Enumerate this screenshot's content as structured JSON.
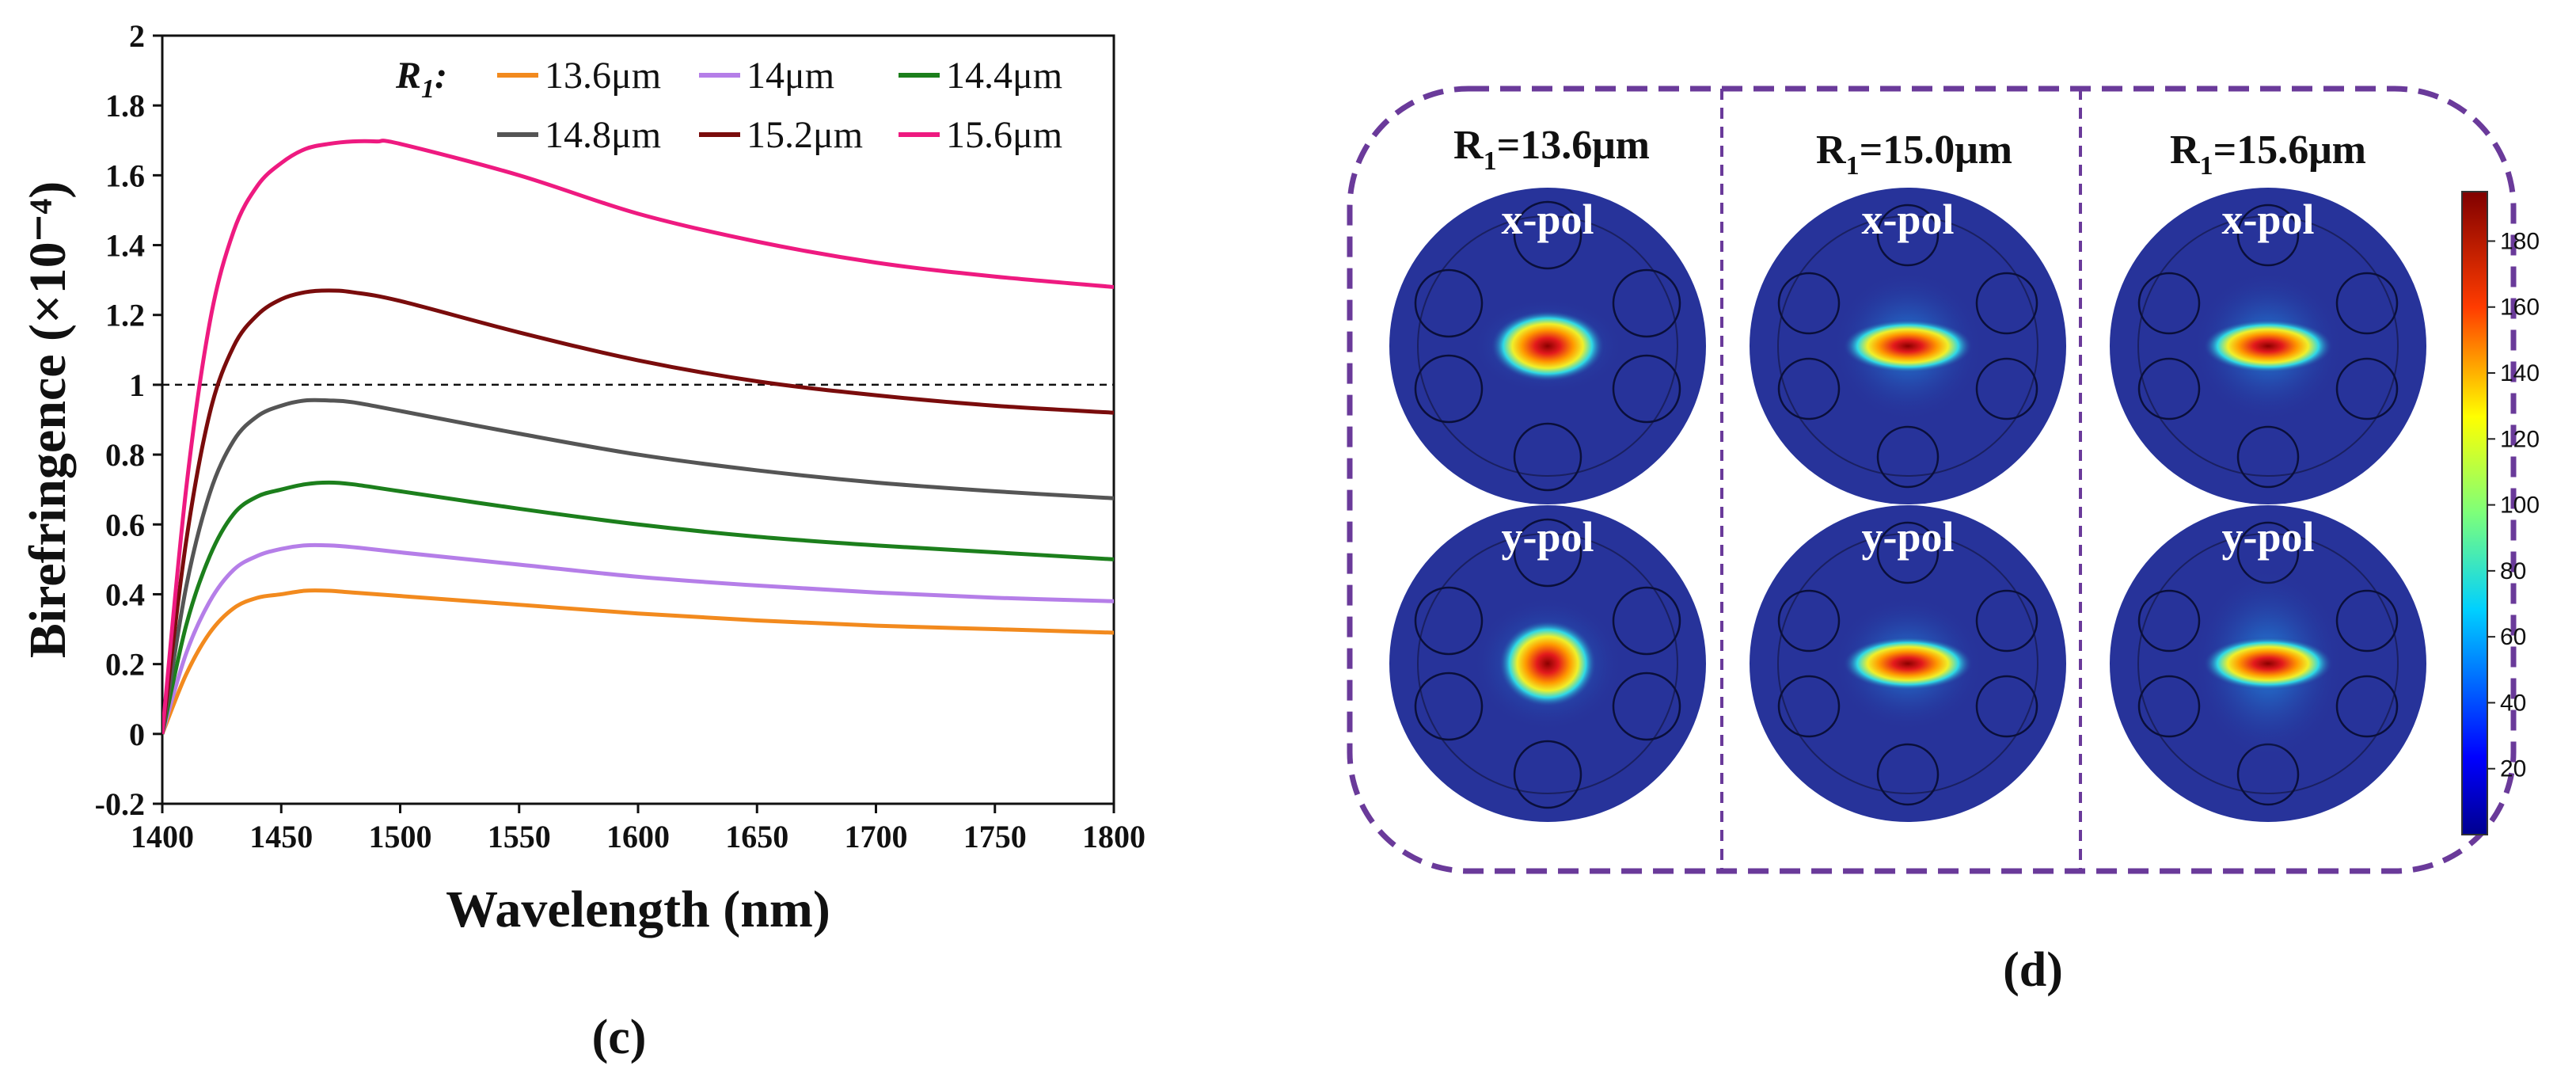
{
  "chart_data": {
    "type": "line",
    "panel_label": "(c)",
    "xlabel": "Wavelength (nm)",
    "ylabel": "Birefringence (×10⁻⁴)",
    "xlim": [
      1400,
      1800
    ],
    "ylim": [
      -0.2,
      2
    ],
    "xticks": [
      1400,
      1450,
      1500,
      1550,
      1600,
      1650,
      1700,
      1750,
      1800
    ],
    "yticks": [
      -0.2,
      0,
      0.2,
      0.4,
      0.6,
      0.8,
      1,
      1.2,
      1.4,
      1.6,
      1.8,
      2
    ],
    "reference_line_y": 1,
    "legend_title": "R",
    "legend_title_sub": "1",
    "legend_title_suffix": ":",
    "series": [
      {
        "name": "13.6μm",
        "color": "#f28a1e",
        "x": [
          1400,
          1410,
          1420,
          1430,
          1440,
          1450,
          1460,
          1470,
          1480,
          1500,
          1550,
          1600,
          1650,
          1700,
          1750,
          1800
        ],
        "y": [
          0.0,
          0.17,
          0.29,
          0.36,
          0.39,
          0.4,
          0.41,
          0.41,
          0.405,
          0.395,
          0.37,
          0.345,
          0.325,
          0.31,
          0.3,
          0.29
        ]
      },
      {
        "name": "14μm",
        "color": "#b57ee8",
        "x": [
          1400,
          1410,
          1420,
          1430,
          1440,
          1450,
          1460,
          1470,
          1480,
          1500,
          1550,
          1600,
          1650,
          1700,
          1750,
          1800
        ],
        "y": [
          0.0,
          0.23,
          0.38,
          0.47,
          0.51,
          0.53,
          0.54,
          0.54,
          0.535,
          0.52,
          0.485,
          0.45,
          0.425,
          0.405,
          0.39,
          0.38
        ]
      },
      {
        "name": "14.4μm",
        "color": "#1c7f1c",
        "x": [
          1400,
          1410,
          1420,
          1430,
          1440,
          1450,
          1460,
          1470,
          1480,
          1500,
          1550,
          1600,
          1650,
          1700,
          1750,
          1800
        ],
        "y": [
          0.0,
          0.31,
          0.51,
          0.63,
          0.68,
          0.7,
          0.715,
          0.72,
          0.715,
          0.695,
          0.645,
          0.6,
          0.565,
          0.54,
          0.52,
          0.5
        ]
      },
      {
        "name": "14.8μm",
        "color": "#555555",
        "x": [
          1400,
          1410,
          1420,
          1430,
          1440,
          1450,
          1460,
          1470,
          1480,
          1500,
          1550,
          1600,
          1650,
          1700,
          1750,
          1800
        ],
        "y": [
          0.0,
          0.42,
          0.69,
          0.84,
          0.91,
          0.94,
          0.955,
          0.955,
          0.95,
          0.925,
          0.86,
          0.8,
          0.755,
          0.72,
          0.695,
          0.675
        ]
      },
      {
        "name": "15.2μm",
        "color": "#7a0c0c",
        "x": [
          1400,
          1410,
          1420,
          1430,
          1440,
          1450,
          1460,
          1470,
          1480,
          1500,
          1550,
          1600,
          1650,
          1700,
          1750,
          1800
        ],
        "y": [
          0.0,
          0.55,
          0.92,
          1.11,
          1.2,
          1.245,
          1.265,
          1.27,
          1.265,
          1.24,
          1.15,
          1.07,
          1.01,
          0.97,
          0.94,
          0.92
        ]
      },
      {
        "name": "15.6μm",
        "color": "#ee1a80",
        "x": [
          1400,
          1410,
          1420,
          1430,
          1440,
          1450,
          1460,
          1470,
          1480,
          1490,
          1500,
          1550,
          1600,
          1650,
          1700,
          1750,
          1800
        ],
        "y": [
          0.0,
          0.7,
          1.18,
          1.44,
          1.57,
          1.635,
          1.675,
          1.69,
          1.697,
          1.697,
          1.69,
          1.6,
          1.49,
          1.41,
          1.35,
          1.31,
          1.28
        ]
      }
    ]
  },
  "panel_d": {
    "label": "(d)",
    "columns": [
      {
        "prefix": "R",
        "sub": "1",
        "suffix": "=13.6μm"
      },
      {
        "prefix": "R",
        "sub": "1",
        "suffix": "=15.0μm"
      },
      {
        "prefix": "R",
        "sub": "1",
        "suffix": "=15.6μm"
      }
    ],
    "row_labels": [
      "x-pol",
      "y-pol"
    ],
    "colorbar": {
      "min": 0,
      "max": 195,
      "ticks": [
        20,
        40,
        60,
        80,
        100,
        120,
        140,
        160,
        180
      ]
    },
    "frame_color": "#6a3a9a",
    "mode_background": "#27339a"
  }
}
